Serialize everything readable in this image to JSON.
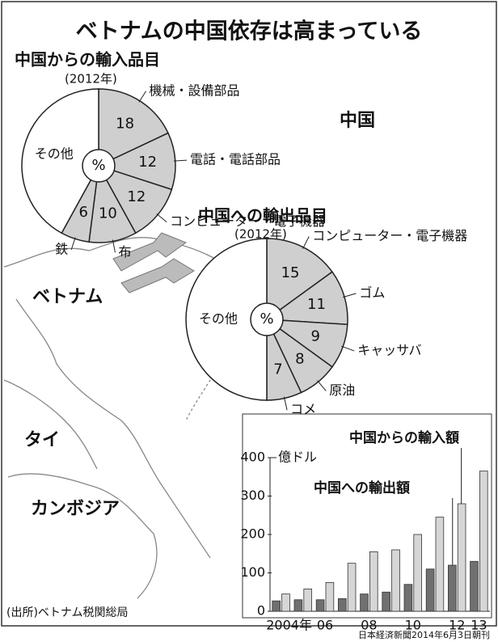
{
  "title": "ベトナムの中国依存は高まっている",
  "map_labels": [
    "中国",
    "ベトナム",
    "タイ",
    "カンボジア"
  ],
  "source": "(出所)ベトナム税関総局",
  "credit": "日本経済新聞2014年6月3日朝刊",
  "chart_data": [
    {
      "type": "pie",
      "title": "中国からの輸入品目",
      "subtitle": "(2012年)",
      "center_label": "%",
      "categories": [
        "機械・設備部品",
        "電話・電話部品",
        "コンピューター・電子機器",
        "布",
        "鉄",
        "その他"
      ],
      "values": [
        18,
        12,
        12,
        10,
        6,
        42
      ],
      "value_labels": [
        "18",
        "12",
        "12",
        "10",
        "6",
        null
      ],
      "colors": [
        "#cfcfcf",
        "#cfcfcf",
        "#cfcfcf",
        "#cfcfcf",
        "#cfcfcf",
        "#ffffff"
      ]
    },
    {
      "type": "pie",
      "title": "中国への輸出品目",
      "subtitle": "(2012年)",
      "center_label": "%",
      "categories": [
        "コンピューター・電子機器",
        "ゴム",
        "キャッサバ",
        "原油",
        "コメ",
        "その他"
      ],
      "values": [
        15,
        11,
        9,
        8,
        7,
        50
      ],
      "value_labels": [
        "15",
        "11",
        "9",
        "8",
        "7",
        null
      ],
      "colors": [
        "#cfcfcf",
        "#cfcfcf",
        "#cfcfcf",
        "#cfcfcf",
        "#cfcfcf",
        "#ffffff"
      ]
    },
    {
      "type": "bar",
      "y_label": "億ドル",
      "categories": [
        "2004年",
        null,
        "06",
        null,
        "08",
        null,
        "10",
        null,
        "12",
        "13"
      ],
      "series": [
        {
          "name": "中国への輸出額",
          "color": "#707070",
          "values": [
            27,
            30,
            30,
            33,
            45,
            50,
            70,
            110,
            120,
            130
          ]
        },
        {
          "name": "中国からの輸入額",
          "color": "#d6d6d6",
          "values": [
            45,
            58,
            75,
            125,
            155,
            160,
            200,
            245,
            280,
            365
          ]
        }
      ],
      "ylim": [
        0,
        400
      ],
      "yticks": [
        0,
        100,
        200,
        300,
        400
      ]
    }
  ]
}
